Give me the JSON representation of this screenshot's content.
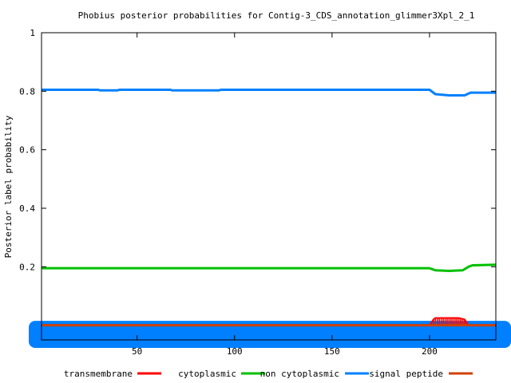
{
  "chart_data": {
    "type": "line",
    "title": "Phobius posterior probabilities for Contig-3_CDS_annotation_glimmer3Xpl_2_1",
    "xlabel": "",
    "ylabel": "Posterior label probability",
    "xlim": [
      1,
      234
    ],
    "ylim": [
      -0.05,
      1.0
    ],
    "x_ticks": [
      50,
      100,
      150,
      200
    ],
    "y_ticks": [
      0.2,
      0.4,
      0.6,
      0.8,
      1.0
    ],
    "y_tick_labels": [
      "0.2",
      "0.4",
      "0.6",
      "0.8",
      "1"
    ],
    "legend_position": "bottom",
    "series": [
      {
        "name": "transmembrane",
        "color": "#ff0000",
        "style": "impulses",
        "points": [
          [
            1,
            0.0
          ],
          [
            200,
            0.0
          ],
          [
            201,
            0.01
          ],
          [
            202,
            0.02
          ],
          [
            203,
            0.025
          ],
          [
            205,
            0.025
          ],
          [
            210,
            0.025
          ],
          [
            215,
            0.025
          ],
          [
            218,
            0.02
          ],
          [
            219,
            0.01
          ],
          [
            220,
            0.0
          ],
          [
            234,
            0.0
          ]
        ]
      },
      {
        "name": "cytoplasmic",
        "color": "#00c000",
        "style": "line",
        "points": [
          [
            1,
            0.195
          ],
          [
            200,
            0.195
          ],
          [
            203,
            0.188
          ],
          [
            210,
            0.186
          ],
          [
            217,
            0.188
          ],
          [
            220,
            0.2
          ],
          [
            222,
            0.205
          ],
          [
            234,
            0.207
          ]
        ]
      },
      {
        "name": "non cytoplasmic",
        "color": "#0080ff",
        "style": "line",
        "points": [
          [
            1,
            0.805
          ],
          [
            30,
            0.805
          ],
          [
            31,
            0.803
          ],
          [
            40,
            0.803
          ],
          [
            41,
            0.805
          ],
          [
            67,
            0.805
          ],
          [
            68,
            0.803
          ],
          [
            92,
            0.803
          ],
          [
            93,
            0.805
          ],
          [
            200,
            0.805
          ],
          [
            203,
            0.79
          ],
          [
            210,
            0.786
          ],
          [
            218,
            0.786
          ],
          [
            221,
            0.795
          ],
          [
            234,
            0.795
          ]
        ]
      },
      {
        "name": "signal peptide",
        "color": "#d04000",
        "style": "line",
        "points": [
          [
            1,
            0.0
          ],
          [
            234,
            0.0
          ]
        ]
      }
    ],
    "band": {
      "color": "#0080ff",
      "y_range": [
        -0.05,
        0.015
      ]
    }
  }
}
